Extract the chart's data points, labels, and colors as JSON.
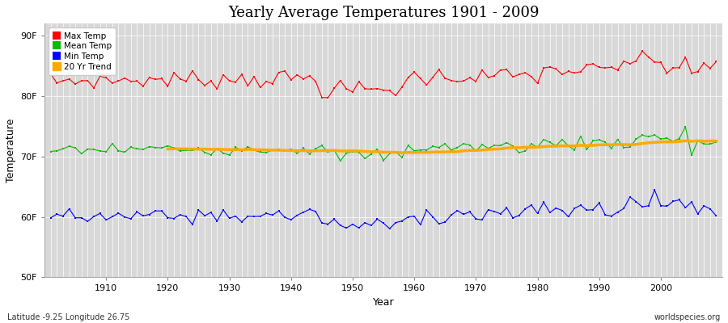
{
  "title": "Yearly Average Temperatures 1901 - 2009",
  "xlabel": "Year",
  "ylabel": "Temperature",
  "year_start": 1901,
  "year_end": 2009,
  "ylim": [
    50,
    92
  ],
  "yticks": [
    50,
    60,
    70,
    80,
    90
  ],
  "ytick_labels": [
    "50F",
    "60F",
    "70F",
    "80F",
    "90F"
  ],
  "xticks": [
    1910,
    1920,
    1930,
    1940,
    1950,
    1960,
    1970,
    1980,
    1990,
    2000
  ],
  "background_color": "#ffffff",
  "plot_bg_color": "#d8d8d8",
  "grid_color": "#ffffff",
  "max_temp_color": "#ff0000",
  "mean_temp_color": "#00bb00",
  "min_temp_color": "#0000ff",
  "trend_color": "#ffaa00",
  "legend_labels": [
    "Max Temp",
    "Mean Temp",
    "Min Temp",
    "20 Yr Trend"
  ],
  "footer_left": "Latitude -9.25 Longitude 26.75",
  "footer_right": "worldspecies.org",
  "max_temp_base": 82.5,
  "mean_temp_base": 71.1,
  "min_temp_base": 60.0
}
